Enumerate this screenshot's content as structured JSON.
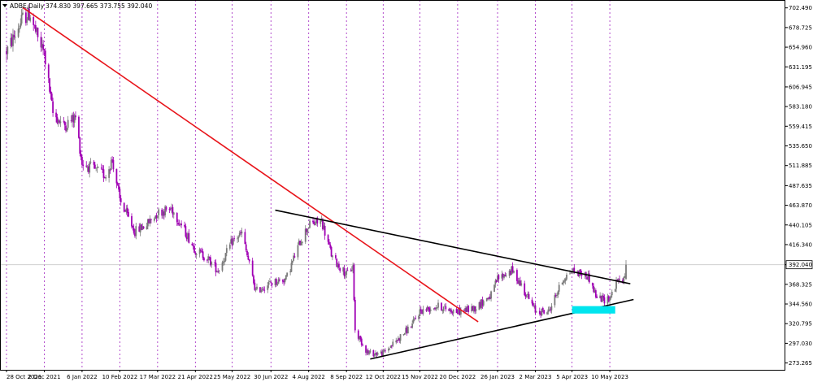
{
  "header": {
    "symbol_label": "ADBE,Daily",
    "ohlc_label": "374.830 397.665 373.755 392.040"
  },
  "colors": {
    "bull": "#7a7a7a",
    "bear": "#a000b4",
    "grid": "#a020c0",
    "downtrend": "#e8151b",
    "trendline": "#000000",
    "highlight": "#00e5ee",
    "price_marker_bg": "#ffffff"
  },
  "chart_data": {
    "type": "candlestick",
    "xlabel": "",
    "ylabel": "",
    "ylim": [
      265,
      712
    ],
    "x_range": [
      "2021-10-28",
      "2023-05-25"
    ],
    "last_price": 392.04,
    "y_ticks": [
      702.49,
      678.725,
      654.96,
      631.195,
      606.945,
      583.18,
      559.415,
      535.65,
      511.885,
      487.635,
      463.87,
      440.105,
      416.34,
      392.04,
      368.325,
      344.56,
      320.795,
      297.03,
      273.265
    ],
    "y_tick_labels": [
      "702.490",
      "678.725",
      "654.960",
      "631.195",
      "606.945",
      "583.180",
      "559.415",
      "535.650",
      "511.885",
      "487.635",
      "463.870",
      "440.105",
      "416.340",
      "392.040",
      "368.325",
      "344.560",
      "320.795",
      "297.030",
      "273.265"
    ],
    "x_ticks": [
      "2021-10-28",
      "2021-12-02",
      "2022-01-06",
      "2022-02-10",
      "2022-03-17",
      "2022-04-21",
      "2022-05-25",
      "2022-06-30",
      "2022-08-04",
      "2022-09-08",
      "2022-10-12",
      "2022-11-15",
      "2022-12-20",
      "2023-01-26",
      "2023-03-02",
      "2023-04-05",
      "2023-05-10"
    ],
    "x_tick_labels": [
      "28 Oct 2021",
      "2 Dec 2021",
      "6 Jan 2022",
      "10 Feb 2022",
      "17 Mar 2022",
      "21 Apr 2022",
      "25 May 2022",
      "30 Jun 2022",
      "4 Aug 2022",
      "8 Sep 2022",
      "12 Oct 2022",
      "15 Nov 2022",
      "20 Dec 2022",
      "26 Jan 2023",
      "2 Mar 2023",
      "5 Apr 2023",
      "10 May 2023"
    ],
    "path_anchors": [
      {
        "date": "2021-10-28",
        "price": 650
      },
      {
        "date": "2021-11-05",
        "price": 670
      },
      {
        "date": "2021-11-12",
        "price": 690
      },
      {
        "date": "2021-11-19",
        "price": 695
      },
      {
        "date": "2021-11-26",
        "price": 665
      },
      {
        "date": "2021-12-02",
        "price": 648
      },
      {
        "date": "2021-12-10",
        "price": 575
      },
      {
        "date": "2021-12-20",
        "price": 560
      },
      {
        "date": "2021-12-31",
        "price": 570
      },
      {
        "date": "2022-01-06",
        "price": 515
      },
      {
        "date": "2022-01-20",
        "price": 505
      },
      {
        "date": "2022-01-28",
        "price": 500
      },
      {
        "date": "2022-02-03",
        "price": 520
      },
      {
        "date": "2022-02-10",
        "price": 470
      },
      {
        "date": "2022-02-24",
        "price": 432
      },
      {
        "date": "2022-03-08",
        "price": 442
      },
      {
        "date": "2022-03-17",
        "price": 455
      },
      {
        "date": "2022-03-30",
        "price": 460
      },
      {
        "date": "2022-04-08",
        "price": 440
      },
      {
        "date": "2022-04-21",
        "price": 410
      },
      {
        "date": "2022-05-02",
        "price": 400
      },
      {
        "date": "2022-05-12",
        "price": 385
      },
      {
        "date": "2022-05-25",
        "price": 420
      },
      {
        "date": "2022-06-03",
        "price": 430
      },
      {
        "date": "2022-06-16",
        "price": 360
      },
      {
        "date": "2022-06-30",
        "price": 370
      },
      {
        "date": "2022-07-14",
        "price": 375
      },
      {
        "date": "2022-07-27",
        "price": 420
      },
      {
        "date": "2022-08-04",
        "price": 440
      },
      {
        "date": "2022-08-16",
        "price": 445
      },
      {
        "date": "2022-08-26",
        "price": 400
      },
      {
        "date": "2022-09-08",
        "price": 380
      },
      {
        "date": "2022-09-14",
        "price": 390
      },
      {
        "date": "2022-09-16",
        "price": 312
      },
      {
        "date": "2022-09-28",
        "price": 285
      },
      {
        "date": "2022-10-12",
        "price": 285
      },
      {
        "date": "2022-10-28",
        "price": 305
      },
      {
        "date": "2022-11-08",
        "price": 320
      },
      {
        "date": "2022-11-15",
        "price": 336
      },
      {
        "date": "2022-12-01",
        "price": 342
      },
      {
        "date": "2022-12-20",
        "price": 335
      },
      {
        "date": "2023-01-05",
        "price": 340
      },
      {
        "date": "2023-01-20",
        "price": 355
      },
      {
        "date": "2023-01-26",
        "price": 375
      },
      {
        "date": "2023-02-08",
        "price": 385
      },
      {
        "date": "2023-02-16",
        "price": 370
      },
      {
        "date": "2023-03-02",
        "price": 336
      },
      {
        "date": "2023-03-14",
        "price": 335
      },
      {
        "date": "2023-03-28",
        "price": 375
      },
      {
        "date": "2023-04-05",
        "price": 385
      },
      {
        "date": "2023-04-20",
        "price": 378
      },
      {
        "date": "2023-04-28",
        "price": 352
      },
      {
        "date": "2023-05-05",
        "price": 350
      },
      {
        "date": "2023-05-10",
        "price": 352
      },
      {
        "date": "2023-05-17",
        "price": 372
      },
      {
        "date": "2023-05-24",
        "price": 375
      },
      {
        "date": "2023-05-25",
        "price": 392.04
      }
    ],
    "trendlines": [
      {
        "name": "downtrend-line",
        "color": "#e8151b",
        "from": {
          "date": "2021-11-12",
          "price": 703
        },
        "to": {
          "date": "2023-01-08",
          "price": 323
        }
      },
      {
        "name": "upper-triangle-line",
        "color": "#000000",
        "from": {
          "date": "2022-07-04",
          "price": 458
        },
        "to": {
          "date": "2023-05-29",
          "price": 369
        }
      },
      {
        "name": "lower-triangle-line",
        "color": "#000000",
        "from": {
          "date": "2022-09-30",
          "price": 278
        },
        "to": {
          "date": "2023-06-01",
          "price": 350
        }
      }
    ],
    "highlight_zone": {
      "from": "2023-04-05",
      "to": "2023-05-15",
      "price_low": 333,
      "price_high": 342
    }
  }
}
